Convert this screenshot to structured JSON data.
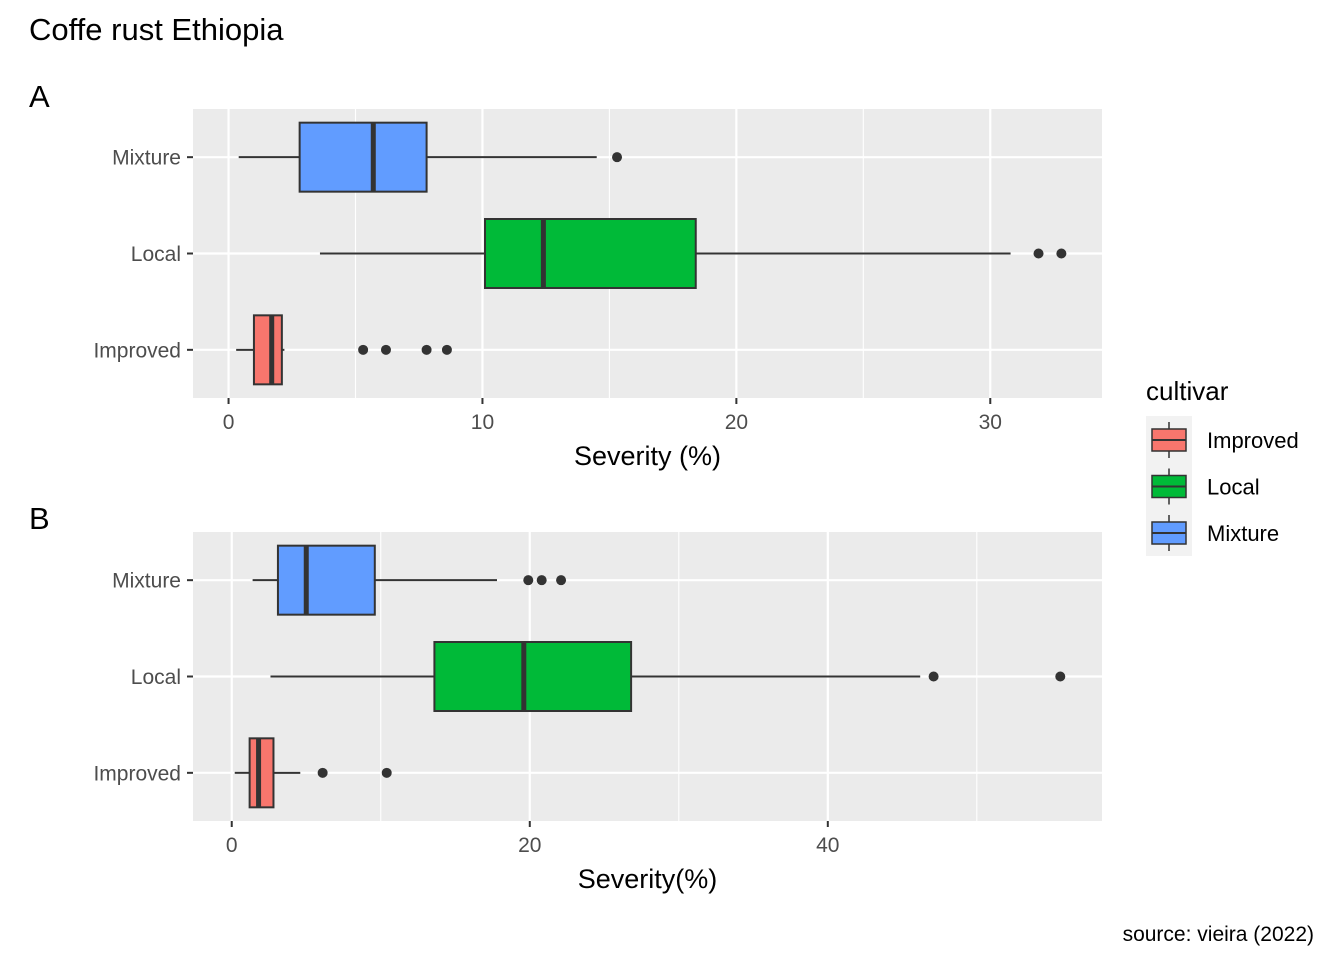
{
  "title": "Coffe rust Ethiopia",
  "caption": "source: vieira (2022)",
  "legend": {
    "title": "cultivar",
    "items": [
      {
        "label": "Improved",
        "color": "#F8766D"
      },
      {
        "label": "Local",
        "color": "#00BA38"
      },
      {
        "label": "Mixture",
        "color": "#619CFF"
      }
    ]
  },
  "chart_data": [
    {
      "type": "boxplot",
      "tag": "A",
      "xlabel": "Severity (%)",
      "xlim": [
        -1.4,
        34.4
      ],
      "xticks": [
        0,
        10,
        20,
        30
      ],
      "minor_xticks": [
        5,
        15,
        25
      ],
      "grid": true,
      "categories": [
        "Mixture",
        "Local",
        "Improved"
      ],
      "series": [
        {
          "name": "Mixture",
          "color": "#619CFF",
          "whisker_low": 0.4,
          "q1": 2.8,
          "median": 5.7,
          "q3": 7.8,
          "whisker_high": 14.5,
          "outliers": [
            15.3
          ]
        },
        {
          "name": "Local",
          "color": "#00BA38",
          "whisker_low": 3.6,
          "q1": 10.1,
          "median": 12.4,
          "q3": 18.4,
          "whisker_high": 30.8,
          "outliers": [
            31.9,
            32.8
          ]
        },
        {
          "name": "Improved",
          "color": "#F8766D",
          "whisker_low": 0.3,
          "q1": 1.0,
          "median": 1.7,
          "q3": 2.1,
          "whisker_high": 2.2,
          "outliers": [
            5.3,
            6.2,
            7.8,
            8.6
          ]
        }
      ]
    },
    {
      "type": "boxplot",
      "tag": "B",
      "xlabel": "Severity(%)",
      "xlim": [
        -2.6,
        58.4
      ],
      "xticks": [
        0,
        20,
        40
      ],
      "minor_xticks": [
        10,
        30,
        50
      ],
      "grid": true,
      "categories": [
        "Mixture",
        "Local",
        "Improved"
      ],
      "series": [
        {
          "name": "Mixture",
          "color": "#619CFF",
          "whisker_low": 1.4,
          "q1": 3.1,
          "median": 5.0,
          "q3": 9.6,
          "whisker_high": 17.8,
          "outliers": [
            19.9,
            20.8,
            22.1
          ]
        },
        {
          "name": "Local",
          "color": "#00BA38",
          "whisker_low": 2.6,
          "q1": 13.6,
          "median": 19.6,
          "q3": 26.8,
          "whisker_high": 46.2,
          "outliers": [
            47.1,
            55.6
          ]
        },
        {
          "name": "Improved",
          "color": "#F8766D",
          "whisker_low": 0.2,
          "q1": 1.2,
          "median": 1.8,
          "q3": 2.8,
          "whisker_high": 4.6,
          "outliers": [
            6.1,
            10.4
          ]
        }
      ]
    }
  ]
}
